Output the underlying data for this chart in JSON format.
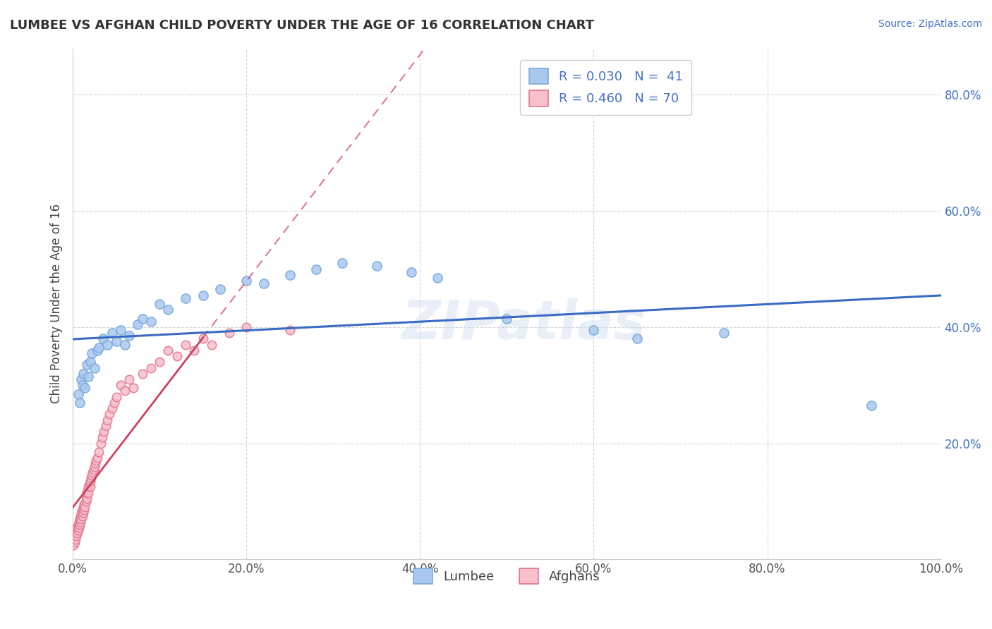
{
  "title": "LUMBEE VS AFGHAN CHILD POVERTY UNDER THE AGE OF 16 CORRELATION CHART",
  "source_text": "Source: ZipAtlas.com",
  "ylabel": "Child Poverty Under the Age of 16",
  "xlim": [
    0,
    1.0
  ],
  "ylim": [
    0,
    0.88
  ],
  "xticks": [
    0.0,
    0.2,
    0.4,
    0.6,
    0.8,
    1.0
  ],
  "xtick_labels": [
    "0.0%",
    "20.0%",
    "40.0%",
    "60.0%",
    "80.0%",
    "100.0%"
  ],
  "yticks": [
    0.2,
    0.4,
    0.6,
    0.8
  ],
  "ytick_labels": [
    "20.0%",
    "40.0%",
    "60.0%",
    "80.0%"
  ],
  "watermark": "ZIPatlas",
  "legend_r1": "R = 0.030   N =  41",
  "legend_r2": "R = 0.460   N = 70",
  "lumbee_color": "#A8C8F0",
  "lumbee_edge": "#7AAAD8",
  "afghan_color": "#F9C0CC",
  "afghan_edge": "#E07890",
  "lumbee_trend_color": "#3A6BC4",
  "afghan_trend_color": "#D04060",
  "background_color": "#FFFFFF",
  "lumbee_x": [
    0.006,
    0.008,
    0.01,
    0.011,
    0.012,
    0.014,
    0.016,
    0.018,
    0.02,
    0.022,
    0.025,
    0.028,
    0.03,
    0.035,
    0.04,
    0.045,
    0.05,
    0.055,
    0.06,
    0.065,
    0.075,
    0.08,
    0.09,
    0.1,
    0.11,
    0.13,
    0.15,
    0.17,
    0.2,
    0.22,
    0.25,
    0.28,
    0.31,
    0.35,
    0.39,
    0.42,
    0.5,
    0.6,
    0.65,
    0.75,
    0.92
  ],
  "lumbee_y": [
    0.285,
    0.27,
    0.31,
    0.3,
    0.32,
    0.295,
    0.335,
    0.315,
    0.34,
    0.355,
    0.33,
    0.36,
    0.365,
    0.38,
    0.37,
    0.39,
    0.375,
    0.395,
    0.37,
    0.385,
    0.405,
    0.415,
    0.41,
    0.44,
    0.43,
    0.45,
    0.455,
    0.465,
    0.48,
    0.475,
    0.49,
    0.5,
    0.51,
    0.505,
    0.495,
    0.485,
    0.415,
    0.395,
    0.38,
    0.39,
    0.265
  ],
  "afghan_x": [
    0.001,
    0.002,
    0.002,
    0.003,
    0.003,
    0.004,
    0.004,
    0.005,
    0.005,
    0.006,
    0.006,
    0.007,
    0.007,
    0.008,
    0.008,
    0.009,
    0.009,
    0.01,
    0.01,
    0.011,
    0.011,
    0.012,
    0.012,
    0.013,
    0.013,
    0.014,
    0.015,
    0.015,
    0.016,
    0.016,
    0.017,
    0.018,
    0.018,
    0.019,
    0.02,
    0.02,
    0.021,
    0.022,
    0.023,
    0.024,
    0.025,
    0.026,
    0.027,
    0.028,
    0.03,
    0.032,
    0.034,
    0.036,
    0.038,
    0.04,
    0.042,
    0.045,
    0.048,
    0.05,
    0.055,
    0.06,
    0.065,
    0.07,
    0.08,
    0.09,
    0.1,
    0.11,
    0.12,
    0.13,
    0.14,
    0.15,
    0.16,
    0.18,
    0.2,
    0.25
  ],
  "afghan_y": [
    0.025,
    0.03,
    0.04,
    0.035,
    0.045,
    0.04,
    0.05,
    0.045,
    0.055,
    0.05,
    0.06,
    0.055,
    0.065,
    0.06,
    0.07,
    0.065,
    0.075,
    0.07,
    0.08,
    0.075,
    0.085,
    0.08,
    0.09,
    0.085,
    0.095,
    0.09,
    0.1,
    0.11,
    0.105,
    0.115,
    0.12,
    0.115,
    0.125,
    0.13,
    0.125,
    0.135,
    0.14,
    0.145,
    0.15,
    0.155,
    0.16,
    0.165,
    0.17,
    0.175,
    0.185,
    0.2,
    0.21,
    0.22,
    0.23,
    0.24,
    0.25,
    0.26,
    0.27,
    0.28,
    0.3,
    0.29,
    0.31,
    0.295,
    0.32,
    0.33,
    0.34,
    0.36,
    0.35,
    0.37,
    0.36,
    0.38,
    0.37,
    0.39,
    0.4,
    0.395
  ]
}
